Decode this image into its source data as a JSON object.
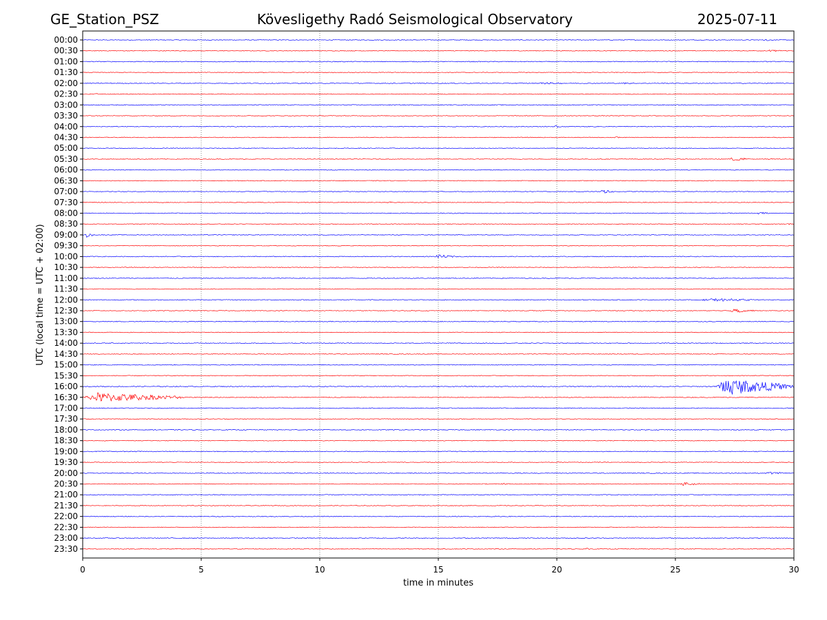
{
  "header": {
    "station": "GE_Station_PSZ",
    "observatory": "Kövesligethy Radó Seismological Observatory",
    "date": "2025-07-11"
  },
  "chart_data": {
    "type": "line",
    "title": "Kövesligethy Radó Seismological Observatory",
    "xlabel": "time in minutes",
    "ylabel": "UTC (local time = UTC + 02:00)",
    "xlim": [
      0,
      30
    ],
    "x_ticks": [
      "0",
      "5",
      "10",
      "15",
      "20",
      "25",
      "30"
    ],
    "x_tick_values": [
      0,
      5,
      10,
      15,
      20,
      25,
      30
    ],
    "grid": "vertical dotted lines at x ticks",
    "trace_colors": [
      "#0000ff",
      "#ff0000"
    ],
    "rows": [
      {
        "label": "00:00",
        "color": "#0000ff",
        "noise": 0.6,
        "events": [
          {
            "x": 28.7,
            "dur": 0.5,
            "amp": 1.2
          }
        ]
      },
      {
        "label": "00:30",
        "color": "#ff0000",
        "noise": 0.6,
        "events": [
          {
            "x": 28.9,
            "dur": 0.6,
            "amp": 1.3
          }
        ]
      },
      {
        "label": "01:00",
        "color": "#0000ff",
        "noise": 0.7,
        "events": []
      },
      {
        "label": "01:30",
        "color": "#ff0000",
        "noise": 0.6,
        "events": []
      },
      {
        "label": "02:00",
        "color": "#0000ff",
        "noise": 0.7,
        "events": [
          {
            "x": 19.2,
            "dur": 1.0,
            "amp": 1.6
          },
          {
            "x": 22.8,
            "dur": 0.4,
            "amp": 1.3
          }
        ]
      },
      {
        "label": "02:30",
        "color": "#ff0000",
        "noise": 0.6,
        "events": [
          {
            "x": 0.5,
            "dur": 0.3,
            "amp": 1.5
          }
        ]
      },
      {
        "label": "03:00",
        "color": "#0000ff",
        "noise": 0.7,
        "events": []
      },
      {
        "label": "03:30",
        "color": "#ff0000",
        "noise": 0.6,
        "events": []
      },
      {
        "label": "04:00",
        "color": "#0000ff",
        "noise": 0.7,
        "events": [
          {
            "x": 19.9,
            "dur": 0.3,
            "amp": 1.6
          }
        ]
      },
      {
        "label": "04:30",
        "color": "#ff0000",
        "noise": 0.6,
        "events": [
          {
            "x": 22.4,
            "dur": 0.4,
            "amp": 1.2
          }
        ]
      },
      {
        "label": "05:00",
        "color": "#0000ff",
        "noise": 0.6,
        "events": []
      },
      {
        "label": "05:30",
        "color": "#ff0000",
        "noise": 0.6,
        "events": [
          {
            "x": 27.3,
            "dur": 0.9,
            "amp": 3.0
          },
          {
            "x": 28.9,
            "dur": 0.3,
            "amp": 1.2
          }
        ]
      },
      {
        "label": "06:00",
        "color": "#0000ff",
        "noise": 0.6,
        "events": []
      },
      {
        "label": "06:30",
        "color": "#ff0000",
        "noise": 0.6,
        "events": []
      },
      {
        "label": "07:00",
        "color": "#0000ff",
        "noise": 0.6,
        "events": [
          {
            "x": 21.8,
            "dur": 0.7,
            "amp": 2.6
          }
        ]
      },
      {
        "label": "07:30",
        "color": "#ff0000",
        "noise": 0.6,
        "events": [
          {
            "x": 12.8,
            "dur": 0.4,
            "amp": 1.3
          }
        ]
      },
      {
        "label": "08:00",
        "color": "#0000ff",
        "noise": 0.7,
        "events": [
          {
            "x": 28.4,
            "dur": 0.5,
            "amp": 1.8
          }
        ]
      },
      {
        "label": "08:30",
        "color": "#ff0000",
        "noise": 0.6,
        "events": [
          {
            "x": 29.6,
            "dur": 0.3,
            "amp": 1.6
          }
        ]
      },
      {
        "label": "09:00",
        "color": "#0000ff",
        "noise": 0.6,
        "events": [
          {
            "x": 0.1,
            "dur": 0.4,
            "amp": 3.2
          }
        ]
      },
      {
        "label": "09:30",
        "color": "#ff0000",
        "noise": 0.6,
        "events": []
      },
      {
        "label": "10:00",
        "color": "#0000ff",
        "noise": 0.7,
        "events": [
          {
            "x": 14.8,
            "dur": 1.0,
            "amp": 2.4
          }
        ]
      },
      {
        "label": "10:30",
        "color": "#ff0000",
        "noise": 0.6,
        "events": []
      },
      {
        "label": "11:00",
        "color": "#0000ff",
        "noise": 0.7,
        "events": []
      },
      {
        "label": "11:30",
        "color": "#ff0000",
        "noise": 0.6,
        "events": []
      },
      {
        "label": "12:00",
        "color": "#0000ff",
        "noise": 0.7,
        "events": [
          {
            "x": 26.0,
            "dur": 3.0,
            "amp": 1.8
          }
        ]
      },
      {
        "label": "12:30",
        "color": "#ff0000",
        "noise": 0.6,
        "events": [
          {
            "x": 27.3,
            "dur": 1.1,
            "amp": 2.8
          }
        ]
      },
      {
        "label": "13:00",
        "color": "#0000ff",
        "noise": 0.7,
        "events": []
      },
      {
        "label": "13:30",
        "color": "#ff0000",
        "noise": 0.6,
        "events": []
      },
      {
        "label": "14:00",
        "color": "#0000ff",
        "noise": 0.7,
        "events": []
      },
      {
        "label": "14:30",
        "color": "#ff0000",
        "noise": 0.6,
        "events": []
      },
      {
        "label": "15:00",
        "color": "#0000ff",
        "noise": 0.7,
        "events": []
      },
      {
        "label": "15:30",
        "color": "#ff0000",
        "noise": 0.6,
        "events": []
      },
      {
        "label": "16:00",
        "color": "#0000ff",
        "noise": 0.8,
        "events": [
          {
            "x": 26.7,
            "dur": 3.3,
            "amp": 12.0
          }
        ]
      },
      {
        "label": "16:30",
        "color": "#ff0000",
        "noise": 0.7,
        "events": [
          {
            "x": 0.0,
            "dur": 4.3,
            "amp": 7.0
          }
        ]
      },
      {
        "label": "17:00",
        "color": "#0000ff",
        "noise": 0.7,
        "events": []
      },
      {
        "label": "17:30",
        "color": "#ff0000",
        "noise": 0.6,
        "events": []
      },
      {
        "label": "18:00",
        "color": "#0000ff",
        "noise": 0.7,
        "events": []
      },
      {
        "label": "18:30",
        "color": "#ff0000",
        "noise": 0.6,
        "events": []
      },
      {
        "label": "19:00",
        "color": "#0000ff",
        "noise": 0.7,
        "events": []
      },
      {
        "label": "19:30",
        "color": "#ff0000",
        "noise": 0.6,
        "events": []
      },
      {
        "label": "20:00",
        "color": "#0000ff",
        "noise": 0.7,
        "events": [
          {
            "x": 28.7,
            "dur": 1.2,
            "amp": 1.5
          }
        ]
      },
      {
        "label": "20:30",
        "color": "#ff0000",
        "noise": 0.6,
        "events": [
          {
            "x": 25.2,
            "dur": 0.8,
            "amp": 3.0
          },
          {
            "x": 17.6,
            "dur": 0.4,
            "amp": 1.3
          }
        ]
      },
      {
        "label": "21:00",
        "color": "#0000ff",
        "noise": 0.7,
        "events": []
      },
      {
        "label": "21:30",
        "color": "#ff0000",
        "noise": 0.6,
        "events": []
      },
      {
        "label": "22:00",
        "color": "#0000ff",
        "noise": 0.7,
        "events": []
      },
      {
        "label": "22:30",
        "color": "#ff0000",
        "noise": 0.6,
        "events": []
      },
      {
        "label": "23:00",
        "color": "#0000ff",
        "noise": 0.7,
        "events": []
      },
      {
        "label": "23:30",
        "color": "#ff0000",
        "noise": 0.6,
        "events": [
          {
            "x": 21.2,
            "dur": 0.3,
            "amp": 1.2
          }
        ]
      }
    ]
  }
}
